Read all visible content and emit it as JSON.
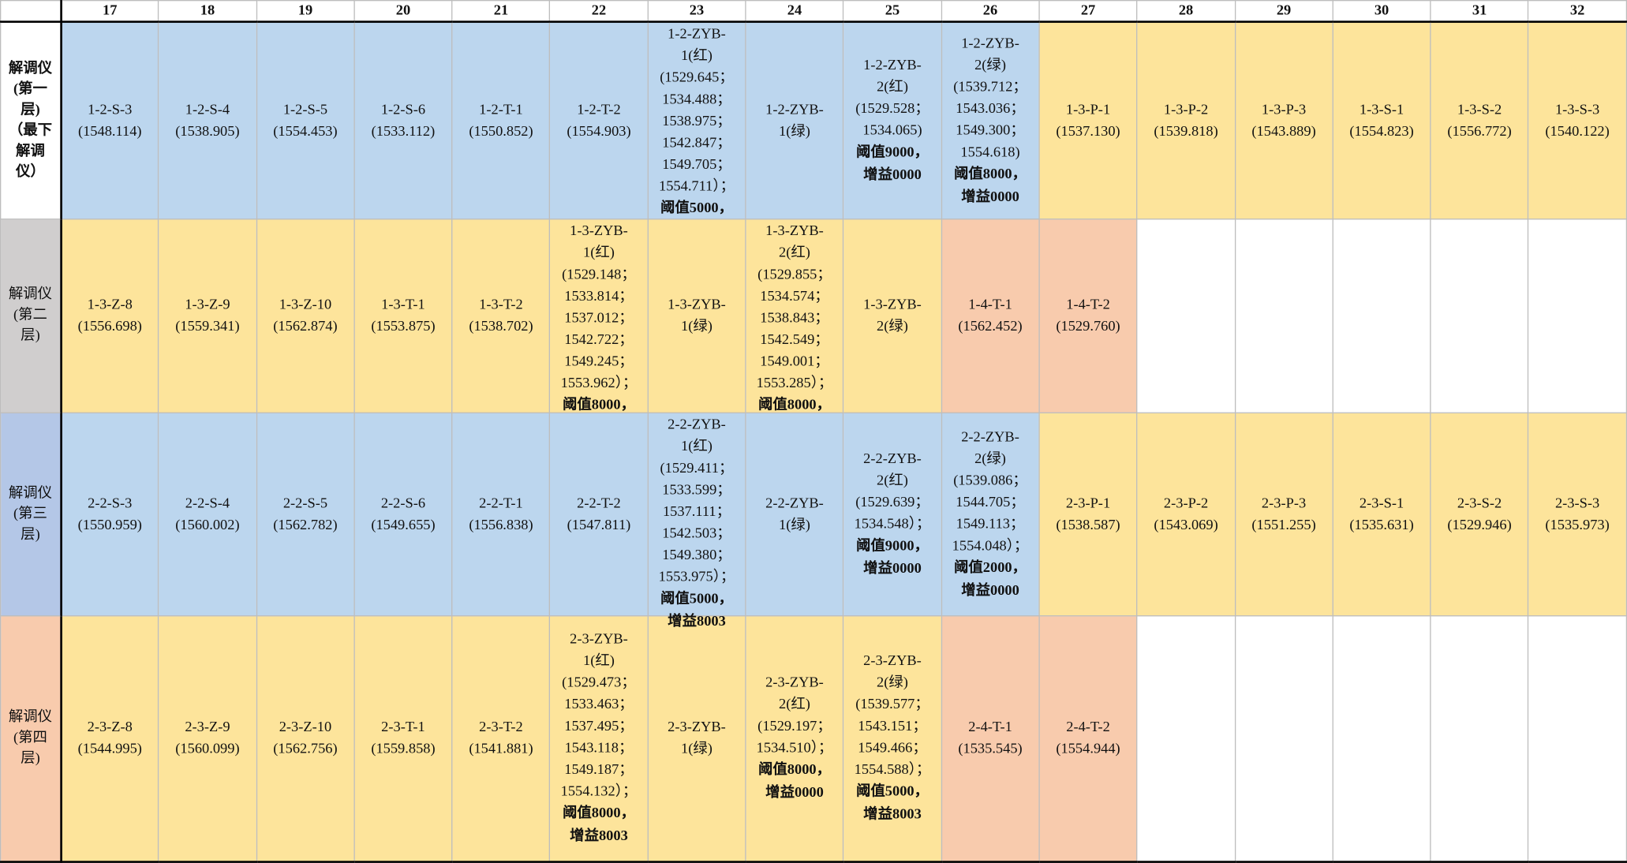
{
  "columns": [
    "17",
    "18",
    "19",
    "20",
    "21",
    "22",
    "23",
    "24",
    "25",
    "26",
    "27",
    "28",
    "29",
    "30",
    "31",
    "32"
  ],
  "colors": {
    "blue": "#bcd6ee",
    "yellow": "#fde49b",
    "orange": "#f8cbad",
    "gray": "#d0cece",
    "periwinkle": "#b4c7e7",
    "white": "#ffffff"
  },
  "rows": [
    {
      "header": "解调仪\n(第一\n层)\n（最下\n解调\n仪）",
      "header_bold": true,
      "header_bg": "white",
      "height": 189,
      "cells": [
        {
          "bg": "blue",
          "lines": [
            "1-2-S-3",
            "(1548.114)"
          ]
        },
        {
          "bg": "blue",
          "lines": [
            "1-2-S-4",
            "(1538.905)"
          ]
        },
        {
          "bg": "blue",
          "lines": [
            "1-2-S-5",
            "(1554.453)"
          ]
        },
        {
          "bg": "blue",
          "lines": [
            "1-2-S-6",
            "(1533.112)"
          ]
        },
        {
          "bg": "blue",
          "lines": [
            "1-2-T-1",
            "(1550.852)"
          ]
        },
        {
          "bg": "blue",
          "lines": [
            "1-2-T-2",
            "(1554.903)"
          ]
        },
        {
          "bg": "blue",
          "lines": [
            "1-2-ZYB-",
            "1(红)",
            "(1529.645；",
            "1534.488；",
            "1538.975；",
            "1542.847；",
            "1549.705；",
            "1554.711）；"
          ],
          "bold": [
            "阈值5000，"
          ]
        },
        {
          "bg": "blue",
          "lines": [
            "1-2-ZYB-",
            "1(绿)"
          ]
        },
        {
          "bg": "blue",
          "lines": [
            "1-2-ZYB-",
            "2(红)",
            "(1529.528；",
            "1534.065)"
          ],
          "bold": [
            "阈值9000，",
            "增益0000"
          ]
        },
        {
          "bg": "blue",
          "lines": [
            "1-2-ZYB-",
            "2(绿)",
            "(1539.712；",
            "1543.036；",
            "1549.300；",
            "1554.618)"
          ],
          "bold": [
            "阈值8000，",
            "增益0000"
          ]
        },
        {
          "bg": "yellow",
          "lines": [
            "1-3-P-1",
            "(1537.130)"
          ]
        },
        {
          "bg": "yellow",
          "lines": [
            "1-3-P-2",
            "(1539.818)"
          ]
        },
        {
          "bg": "yellow",
          "lines": [
            "1-3-P-3",
            "(1543.889)"
          ]
        },
        {
          "bg": "yellow",
          "lines": [
            "1-3-S-1",
            "(1554.823)"
          ]
        },
        {
          "bg": "yellow",
          "lines": [
            "1-3-S-2",
            "(1556.772)"
          ]
        },
        {
          "bg": "yellow",
          "lines": [
            "1-3-S-3",
            "(1540.122)"
          ]
        }
      ]
    },
    {
      "header": "解调仪\n(第二\n层)",
      "header_bold": false,
      "header_bg": "gray",
      "height": 186,
      "cells": [
        {
          "bg": "yellow",
          "lines": [
            "1-3-Z-8",
            "(1556.698)"
          ]
        },
        {
          "bg": "yellow",
          "lines": [
            "1-3-Z-9",
            "(1559.341)"
          ]
        },
        {
          "bg": "yellow",
          "lines": [
            "1-3-Z-10",
            "(1562.874)"
          ]
        },
        {
          "bg": "yellow",
          "lines": [
            "1-3-T-1",
            "(1553.875)"
          ]
        },
        {
          "bg": "yellow",
          "lines": [
            "1-3-T-2",
            "(1538.702)"
          ]
        },
        {
          "bg": "yellow",
          "lines": [
            "1-3-ZYB-",
            "1(红)",
            "(1529.148；",
            "1533.814；",
            "1537.012；",
            "1542.722；",
            "1549.245；",
            "1553.962）；"
          ],
          "bold": [
            "阈值8000，"
          ]
        },
        {
          "bg": "yellow",
          "lines": [
            "1-3-ZYB-",
            "1(绿)"
          ]
        },
        {
          "bg": "yellow",
          "lines": [
            "1-3-ZYB-",
            "2(红)",
            "(1529.855；",
            "1534.574；",
            "1538.843；",
            "1542.549；",
            "1549.001；",
            "1553.285）；"
          ],
          "bold": [
            "阈值8000，"
          ]
        },
        {
          "bg": "yellow",
          "lines": [
            "1-3-ZYB-",
            "2(绿)"
          ]
        },
        {
          "bg": "orange",
          "lines": [
            "1-4-T-1",
            "(1562.452)"
          ]
        },
        {
          "bg": "orange",
          "lines": [
            "1-4-T-2",
            "(1529.760)"
          ]
        },
        {
          "bg": "white",
          "lines": []
        },
        {
          "bg": "white",
          "lines": []
        },
        {
          "bg": "white",
          "lines": []
        },
        {
          "bg": "white",
          "lines": []
        },
        {
          "bg": "white",
          "lines": []
        }
      ]
    },
    {
      "header": "解调仪\n(第三\n层)",
      "header_bold": false,
      "header_bg": "periwinkle",
      "height": 195,
      "cells": [
        {
          "bg": "blue",
          "lines": [
            "2-2-S-3",
            "(1550.959)"
          ]
        },
        {
          "bg": "blue",
          "lines": [
            "2-2-S-4",
            "(1560.002)"
          ]
        },
        {
          "bg": "blue",
          "lines": [
            "2-2-S-5",
            "(1562.782)"
          ]
        },
        {
          "bg": "blue",
          "lines": [
            "2-2-S-6",
            "(1549.655)"
          ]
        },
        {
          "bg": "blue",
          "lines": [
            "2-2-T-1",
            "(1556.838)"
          ]
        },
        {
          "bg": "blue",
          "lines": [
            "2-2-T-2",
            "(1547.811)"
          ]
        },
        {
          "bg": "blue",
          "lines": [
            "2-2-ZYB-",
            "1(红)",
            "(1529.411；",
            "1533.599；",
            "1537.111；",
            "1542.503；",
            "1549.380；",
            "1553.975）；"
          ],
          "bold": [
            "阈值5000，",
            "增益8003"
          ]
        },
        {
          "bg": "blue",
          "lines": [
            "2-2-ZYB-",
            "1(绿)"
          ]
        },
        {
          "bg": "blue",
          "lines": [
            "2-2-ZYB-",
            "2(红)",
            "(1529.639；",
            "1534.548）；"
          ],
          "bold": [
            "阈值9000，",
            "增益0000"
          ]
        },
        {
          "bg": "blue",
          "lines": [
            "2-2-ZYB-",
            "2(绿)",
            "(1539.086；",
            "1544.705；",
            "1549.113；",
            "1554.048）；"
          ],
          "bold": [
            "阈值2000，",
            "增益0000"
          ]
        },
        {
          "bg": "yellow",
          "lines": [
            "2-3-P-1",
            "(1538.587)"
          ]
        },
        {
          "bg": "yellow",
          "lines": [
            "2-3-P-2",
            "(1543.069)"
          ]
        },
        {
          "bg": "yellow",
          "lines": [
            "2-3-P-3",
            "(1551.255)"
          ]
        },
        {
          "bg": "yellow",
          "lines": [
            "2-3-S-1",
            "(1535.631)"
          ]
        },
        {
          "bg": "yellow",
          "lines": [
            "2-3-S-2",
            "(1529.946)"
          ]
        },
        {
          "bg": "yellow",
          "lines": [
            "2-3-S-3",
            "(1535.973)"
          ]
        }
      ]
    },
    {
      "header": "解调仪\n(第四\n层)",
      "header_bold": false,
      "header_bg": "orange",
      "height": 236,
      "cells": [
        {
          "bg": "yellow",
          "lines": [
            "2-3-Z-8",
            "(1544.995)"
          ]
        },
        {
          "bg": "yellow",
          "lines": [
            "2-3-Z-9",
            "(1560.099)"
          ]
        },
        {
          "bg": "yellow",
          "lines": [
            "2-3-Z-10",
            "(1562.756)"
          ]
        },
        {
          "bg": "yellow",
          "lines": [
            "2-3-T-1",
            "(1559.858)"
          ]
        },
        {
          "bg": "yellow",
          "lines": [
            "2-3-T-2",
            "(1541.881)"
          ]
        },
        {
          "bg": "yellow",
          "lines": [
            "2-3-ZYB-",
            "1(红)",
            "(1529.473；",
            "1533.463；",
            "1537.495；",
            "1543.118；",
            "1549.187；",
            "1554.132）；"
          ],
          "bold": [
            "阈值8000，",
            "增益8003"
          ]
        },
        {
          "bg": "yellow",
          "lines": [
            "2-3-ZYB-",
            "1(绿)"
          ]
        },
        {
          "bg": "yellow",
          "lines": [
            "2-3-ZYB-",
            "2(红)",
            "(1529.197；",
            "1534.510）；"
          ],
          "bold": [
            "阈值8000，",
            "增益0000"
          ]
        },
        {
          "bg": "yellow",
          "lines": [
            "2-3-ZYB-",
            "2(绿)",
            "(1539.577；",
            "1543.151；",
            "1549.466；",
            "1554.588）；"
          ],
          "bold": [
            "阈值5000，",
            "增益8003"
          ]
        },
        {
          "bg": "orange",
          "lines": [
            "2-4-T-1",
            "(1535.545)"
          ]
        },
        {
          "bg": "orange",
          "lines": [
            "2-4-T-2",
            "(1554.944)"
          ]
        },
        {
          "bg": "white",
          "lines": []
        },
        {
          "bg": "white",
          "lines": []
        },
        {
          "bg": "white",
          "lines": []
        },
        {
          "bg": "white",
          "lines": []
        },
        {
          "bg": "white",
          "lines": []
        }
      ]
    }
  ]
}
